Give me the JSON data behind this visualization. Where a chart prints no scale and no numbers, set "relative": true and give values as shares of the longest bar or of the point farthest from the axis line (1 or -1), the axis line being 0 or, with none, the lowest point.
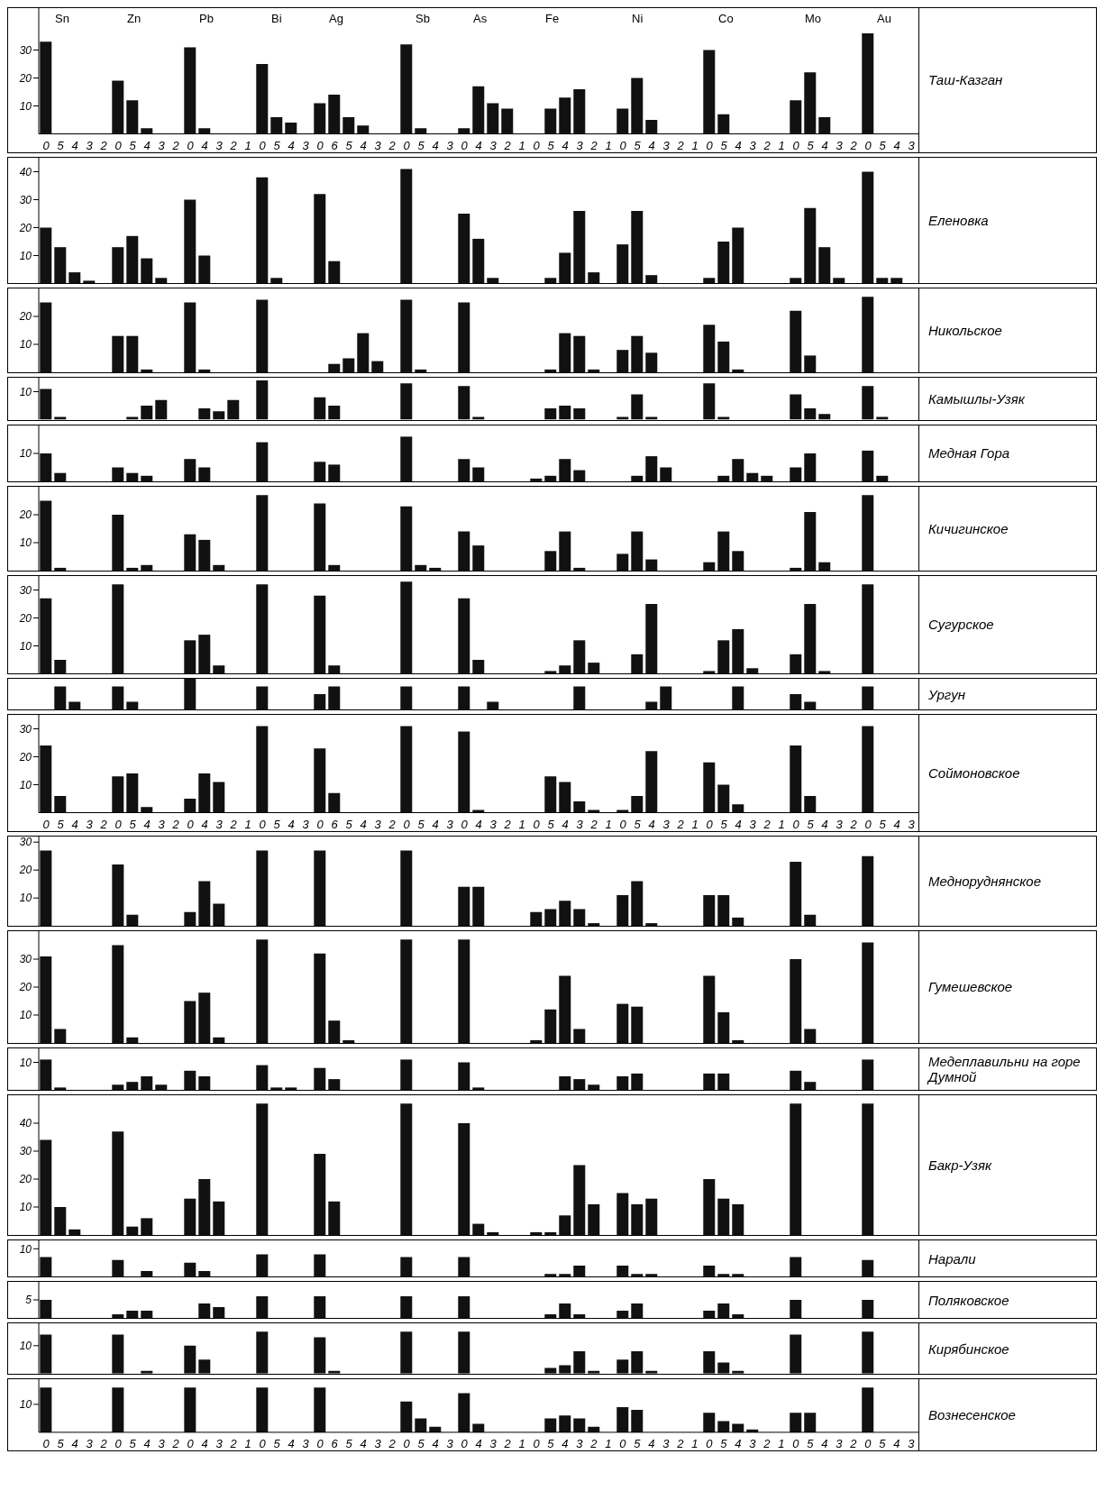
{
  "chart_data": [
    {
      "type": "bar",
      "y2label": "Таш-Казган",
      "color": "#111111",
      "ylim": [
        0,
        45
      ],
      "yticks": [
        10,
        20,
        30
      ],
      "annotations": [
        "Sn",
        "Zn",
        "Pb",
        "Bi",
        "Ag",
        "Sb",
        "As",
        "Fe",
        "Ni",
        "Co",
        "Mo",
        "Au"
      ],
      "categories": [
        "0",
        "5",
        "4",
        "3",
        "2",
        "0",
        "5",
        "4",
        "3",
        "2",
        "0",
        "4",
        "3",
        "2",
        "1",
        "0",
        "5",
        "4",
        "3",
        "0",
        "6",
        "5",
        "4",
        "3",
        "2",
        "0",
        "5",
        "4",
        "3",
        "0",
        "4",
        "3",
        "2",
        "1",
        "0",
        "5",
        "4",
        "3",
        "2",
        "1",
        "0",
        "5",
        "4",
        "3",
        "2",
        "1",
        "0",
        "5",
        "4",
        "3",
        "2",
        "1",
        "0",
        "5",
        "4",
        "3",
        "2",
        "0",
        "5",
        "4",
        "3"
      ],
      "values": [
        33,
        0,
        0,
        0,
        0,
        19,
        12,
        2,
        0,
        0,
        31,
        2,
        0,
        0,
        0,
        25,
        6,
        4,
        0,
        11,
        14,
        6,
        3,
        0,
        0,
        32,
        2,
        0,
        0,
        2,
        17,
        11,
        9,
        0,
        0,
        9,
        13,
        16,
        0,
        0,
        9,
        20,
        5,
        0,
        0,
        0,
        30,
        7,
        0,
        0,
        0,
        0,
        12,
        22,
        6,
        0,
        0,
        36,
        0,
        0,
        0
      ]
    },
    {
      "type": "bar",
      "y2label": "Еленовка",
      "color": "#111111",
      "ylim": [
        0,
        45
      ],
      "yticks": [
        10,
        20,
        30,
        40
      ],
      "categories": [
        null,
        null,
        null,
        null,
        null,
        null,
        null,
        null,
        null,
        null,
        null,
        null,
        null,
        null,
        null,
        null,
        null,
        null,
        null,
        null,
        null,
        null,
        null,
        null,
        null,
        null,
        null,
        null,
        null,
        null,
        null,
        null,
        null,
        null,
        null,
        null,
        null,
        null,
        null,
        null,
        null,
        null,
        null,
        null,
        null,
        null,
        null,
        null,
        null,
        null,
        null,
        null,
        null,
        null,
        null,
        null,
        null,
        null,
        null,
        null,
        null
      ],
      "values": [
        20,
        13,
        4,
        1,
        0,
        13,
        17,
        9,
        2,
        0,
        30,
        10,
        0,
        0,
        0,
        38,
        2,
        0,
        0,
        32,
        8,
        0,
        0,
        0,
        0,
        41,
        0,
        0,
        0,
        25,
        16,
        2,
        0,
        0,
        0,
        2,
        11,
        26,
        4,
        0,
        14,
        26,
        3,
        0,
        0,
        0,
        2,
        15,
        20,
        0,
        0,
        0,
        2,
        27,
        13,
        2,
        0,
        40,
        2,
        2,
        0
      ]
    },
    {
      "type": "bar",
      "y2label": "Никольское",
      "color": "#111111",
      "ylim": [
        0,
        30
      ],
      "yticks": [
        10,
        20
      ],
      "categories": [
        null,
        null,
        null,
        null,
        null,
        null,
        null,
        null,
        null,
        null,
        null,
        null,
        null,
        null,
        null,
        null,
        null,
        null,
        null,
        null,
        null,
        null,
        null,
        null,
        null,
        null,
        null,
        null,
        null,
        null,
        null,
        null,
        null,
        null,
        null,
        null,
        null,
        null,
        null,
        null,
        null,
        null,
        null,
        null,
        null,
        null,
        null,
        null,
        null,
        null,
        null,
        null,
        null,
        null,
        null,
        null,
        null,
        null,
        null,
        null,
        null
      ],
      "values": [
        25,
        0,
        0,
        0,
        0,
        13,
        13,
        1,
        0,
        0,
        25,
        1,
        0,
        0,
        0,
        26,
        0,
        0,
        0,
        0,
        3,
        5,
        14,
        4,
        0,
        26,
        1,
        0,
        0,
        25,
        0,
        0,
        0,
        0,
        0,
        1,
        14,
        13,
        1,
        0,
        8,
        13,
        7,
        0,
        0,
        0,
        17,
        11,
        1,
        0,
        0,
        0,
        22,
        6,
        0,
        0,
        0,
        27,
        0,
        0,
        0
      ]
    },
    {
      "type": "bar",
      "y2label": "Камышлы-Узяк",
      "color": "#111111",
      "ylim": [
        0,
        15
      ],
      "yticks": [
        10
      ],
      "categories": [
        null,
        null,
        null,
        null,
        null,
        null,
        null,
        null,
        null,
        null,
        null,
        null,
        null,
        null,
        null,
        null,
        null,
        null,
        null,
        null,
        null,
        null,
        null,
        null,
        null,
        null,
        null,
        null,
        null,
        null,
        null,
        null,
        null,
        null,
        null,
        null,
        null,
        null,
        null,
        null,
        null,
        null,
        null,
        null,
        null,
        null,
        null,
        null,
        null,
        null,
        null,
        null,
        null,
        null,
        null,
        null,
        null,
        null,
        null,
        null,
        null
      ],
      "values": [
        11,
        1,
        0,
        0,
        0,
        0,
        1,
        5,
        7,
        0,
        0,
        4,
        3,
        7,
        0,
        14,
        0,
        0,
        0,
        8,
        5,
        0,
        0,
        0,
        0,
        13,
        0,
        0,
        0,
        12,
        1,
        0,
        0,
        0,
        0,
        4,
        5,
        4,
        0,
        0,
        1,
        9,
        1,
        0,
        0,
        0,
        13,
        1,
        0,
        0,
        0,
        0,
        9,
        4,
        2,
        0,
        0,
        12,
        1,
        0,
        0
      ]
    },
    {
      "type": "bar",
      "y2label": "Медная Гора",
      "color": "#111111",
      "ylim": [
        0,
        20
      ],
      "yticks": [
        10
      ],
      "categories": [
        null,
        null,
        null,
        null,
        null,
        null,
        null,
        null,
        null,
        null,
        null,
        null,
        null,
        null,
        null,
        null,
        null,
        null,
        null,
        null,
        null,
        null,
        null,
        null,
        null,
        null,
        null,
        null,
        null,
        null,
        null,
        null,
        null,
        null,
        null,
        null,
        null,
        null,
        null,
        null,
        null,
        null,
        null,
        null,
        null,
        null,
        null,
        null,
        null,
        null,
        null,
        null,
        null,
        null,
        null,
        null,
        null,
        null,
        null,
        null,
        null
      ],
      "values": [
        10,
        3,
        0,
        0,
        0,
        5,
        3,
        2,
        0,
        0,
        8,
        5,
        0,
        0,
        0,
        14,
        0,
        0,
        0,
        7,
        6,
        0,
        0,
        0,
        0,
        16,
        0,
        0,
        0,
        8,
        5,
        0,
        0,
        0,
        1,
        2,
        8,
        4,
        0,
        0,
        0,
        2,
        9,
        5,
        0,
        0,
        0,
        2,
        8,
        3,
        2,
        0,
        5,
        10,
        0,
        0,
        0,
        11,
        2,
        0,
        0
      ]
    },
    {
      "type": "bar",
      "y2label": "Кичигинское",
      "color": "#111111",
      "ylim": [
        0,
        30
      ],
      "yticks": [
        10,
        20
      ],
      "categories": [
        null,
        null,
        null,
        null,
        null,
        null,
        null,
        null,
        null,
        null,
        null,
        null,
        null,
        null,
        null,
        null,
        null,
        null,
        null,
        null,
        null,
        null,
        null,
        null,
        null,
        null,
        null,
        null,
        null,
        null,
        null,
        null,
        null,
        null,
        null,
        null,
        null,
        null,
        null,
        null,
        null,
        null,
        null,
        null,
        null,
        null,
        null,
        null,
        null,
        null,
        null,
        null,
        null,
        null,
        null,
        null,
        null,
        null,
        null,
        null,
        null
      ],
      "values": [
        25,
        1,
        0,
        0,
        0,
        20,
        1,
        2,
        0,
        0,
        13,
        11,
        2,
        0,
        0,
        27,
        0,
        0,
        0,
        24,
        2,
        0,
        0,
        0,
        0,
        23,
        2,
        1,
        0,
        14,
        9,
        0,
        0,
        0,
        0,
        7,
        14,
        1,
        0,
        0,
        6,
        14,
        4,
        0,
        0,
        0,
        3,
        14,
        7,
        0,
        0,
        0,
        1,
        21,
        3,
        0,
        0,
        27,
        0,
        0,
        0
      ]
    },
    {
      "type": "bar",
      "y2label": "Сугурское",
      "color": "#111111",
      "ylim": [
        0,
        35
      ],
      "yticks": [
        10,
        20,
        30
      ],
      "categories": [
        null,
        null,
        null,
        null,
        null,
        null,
        null,
        null,
        null,
        null,
        null,
        null,
        null,
        null,
        null,
        null,
        null,
        null,
        null,
        null,
        null,
        null,
        null,
        null,
        null,
        null,
        null,
        null,
        null,
        null,
        null,
        null,
        null,
        null,
        null,
        null,
        null,
        null,
        null,
        null,
        null,
        null,
        null,
        null,
        null,
        null,
        null,
        null,
        null,
        null,
        null,
        null,
        null,
        null,
        null,
        null,
        null,
        null,
        null,
        null,
        null
      ],
      "values": [
        27,
        5,
        0,
        0,
        0,
        32,
        0,
        0,
        0,
        0,
        12,
        14,
        3,
        0,
        0,
        32,
        0,
        0,
        0,
        28,
        3,
        0,
        0,
        0,
        0,
        33,
        0,
        0,
        0,
        27,
        5,
        0,
        0,
        0,
        0,
        1,
        3,
        12,
        4,
        0,
        0,
        7,
        25,
        0,
        0,
        0,
        1,
        12,
        16,
        2,
        0,
        0,
        7,
        25,
        1,
        0,
        0,
        32,
        0,
        0,
        0
      ]
    },
    {
      "type": "bar",
      "y2label": "Ургун",
      "color": "#111111",
      "relative": true,
      "categories": [
        null,
        null,
        null,
        null,
        null,
        null,
        null,
        null,
        null,
        null,
        null,
        null,
        null,
        null,
        null,
        null,
        null,
        null,
        null,
        null,
        null,
        null,
        null,
        null,
        null,
        null,
        null,
        null,
        null,
        null,
        null,
        null,
        null,
        null,
        null,
        null,
        null,
        null,
        null,
        null,
        null,
        null,
        null,
        null,
        null,
        null,
        null,
        null,
        null,
        null,
        null,
        null,
        null,
        null,
        null,
        null,
        null,
        null,
        null,
        null,
        null
      ],
      "values": [
        0,
        0.75,
        0.25,
        0,
        0,
        0.75,
        0.25,
        0,
        0,
        0,
        1,
        0,
        0,
        0,
        0,
        0.75,
        0,
        0,
        0,
        0.5,
        0.75,
        0,
        0,
        0,
        0,
        0.75,
        0,
        0,
        0,
        0.75,
        0,
        0.25,
        0,
        0,
        0,
        0,
        0,
        0.75,
        0,
        0,
        0,
        0,
        0.25,
        0.75,
        0,
        0,
        0,
        0,
        0.75,
        0,
        0,
        0,
        0.5,
        0.25,
        0,
        0,
        0,
        0.75,
        0,
        0,
        0
      ]
    },
    {
      "type": "bar",
      "y2label": "Соймоновское",
      "color": "#111111",
      "ylim": [
        0,
        35
      ],
      "yticks": [
        10,
        20,
        30
      ],
      "categories": [
        "0",
        "5",
        "4",
        "3",
        "2",
        "0",
        "5",
        "4",
        "3",
        "2",
        "0",
        "4",
        "3",
        "2",
        "1",
        "0",
        "5",
        "4",
        "3",
        "0",
        "6",
        "5",
        "4",
        "3",
        "2",
        "0",
        "5",
        "4",
        "3",
        "0",
        "4",
        "3",
        "2",
        "1",
        "0",
        "5",
        "4",
        "3",
        "2",
        "1",
        "0",
        "5",
        "4",
        "3",
        "2",
        "1",
        "0",
        "5",
        "4",
        "3",
        "2",
        "1",
        "0",
        "5",
        "4",
        "3",
        "2",
        "0",
        "5",
        "4",
        "3"
      ],
      "values": [
        24,
        6,
        0,
        0,
        0,
        13,
        14,
        2,
        0,
        0,
        5,
        14,
        11,
        0,
        0,
        31,
        0,
        0,
        0,
        23,
        7,
        0,
        0,
        0,
        0,
        31,
        0,
        0,
        0,
        29,
        1,
        0,
        0,
        0,
        0,
        13,
        11,
        4,
        1,
        0,
        1,
        6,
        22,
        0,
        0,
        0,
        18,
        10,
        3,
        0,
        0,
        0,
        24,
        6,
        0,
        0,
        0,
        31,
        0,
        0,
        0
      ]
    },
    {
      "type": "bar",
      "y2label": "Медноруднянское",
      "color": "#111111",
      "ylim": [
        0,
        32
      ],
      "yticks": [
        10,
        20,
        30
      ],
      "categories": [
        null,
        null,
        null,
        null,
        null,
        null,
        null,
        null,
        null,
        null,
        null,
        null,
        null,
        null,
        null,
        null,
        null,
        null,
        null,
        null,
        null,
        null,
        null,
        null,
        null,
        null,
        null,
        null,
        null,
        null,
        null,
        null,
        null,
        null,
        null,
        null,
        null,
        null,
        null,
        null,
        null,
        null,
        null,
        null,
        null,
        null,
        null,
        null,
        null,
        null,
        null,
        null,
        null,
        null,
        null,
        null,
        null,
        null,
        null,
        null,
        null
      ],
      "values": [
        27,
        0,
        0,
        0,
        0,
        22,
        4,
        0,
        0,
        0,
        5,
        16,
        8,
        0,
        0,
        27,
        0,
        0,
        0,
        27,
        0,
        0,
        0,
        0,
        0,
        27,
        0,
        0,
        0,
        14,
        14,
        0,
        0,
        0,
        5,
        6,
        9,
        6,
        1,
        0,
        11,
        16,
        1,
        0,
        0,
        0,
        11,
        11,
        3,
        0,
        0,
        0,
        23,
        4,
        0,
        0,
        0,
        25,
        0,
        0,
        0
      ]
    },
    {
      "type": "bar",
      "y2label": "Гумешевское",
      "color": "#111111",
      "ylim": [
        0,
        40
      ],
      "yticks": [
        10,
        20,
        30
      ],
      "categories": [
        null,
        null,
        null,
        null,
        null,
        null,
        null,
        null,
        null,
        null,
        null,
        null,
        null,
        null,
        null,
        null,
        null,
        null,
        null,
        null,
        null,
        null,
        null,
        null,
        null,
        null,
        null,
        null,
        null,
        null,
        null,
        null,
        null,
        null,
        null,
        null,
        null,
        null,
        null,
        null,
        null,
        null,
        null,
        null,
        null,
        null,
        null,
        null,
        null,
        null,
        null,
        null,
        null,
        null,
        null,
        null,
        null,
        null,
        null,
        null,
        null
      ],
      "values": [
        31,
        5,
        0,
        0,
        0,
        35,
        2,
        0,
        0,
        0,
        15,
        18,
        2,
        0,
        0,
        37,
        0,
        0,
        0,
        32,
        8,
        1,
        0,
        0,
        0,
        37,
        0,
        0,
        0,
        37,
        0,
        0,
        0,
        0,
        1,
        12,
        24,
        5,
        0,
        0,
        14,
        13,
        0,
        0,
        0,
        0,
        24,
        11,
        1,
        0,
        0,
        0,
        30,
        5,
        0,
        0,
        0,
        36,
        0,
        0,
        0
      ]
    },
    {
      "type": "bar",
      "y2label": "Медеплавильни на горе Думной",
      "color": "#111111",
      "ylim": [
        0,
        15
      ],
      "yticks": [
        10
      ],
      "categories": [
        null,
        null,
        null,
        null,
        null,
        null,
        null,
        null,
        null,
        null,
        null,
        null,
        null,
        null,
        null,
        null,
        null,
        null,
        null,
        null,
        null,
        null,
        null,
        null,
        null,
        null,
        null,
        null,
        null,
        null,
        null,
        null,
        null,
        null,
        null,
        null,
        null,
        null,
        null,
        null,
        null,
        null,
        null,
        null,
        null,
        null,
        null,
        null,
        null,
        null,
        null,
        null,
        null,
        null,
        null,
        null,
        null,
        null,
        null,
        null,
        null
      ],
      "values": [
        11,
        1,
        0,
        0,
        0,
        2,
        3,
        5,
        2,
        0,
        7,
        5,
        0,
        0,
        0,
        9,
        1,
        1,
        0,
        8,
        4,
        0,
        0,
        0,
        0,
        11,
        0,
        0,
        0,
        10,
        1,
        0,
        0,
        0,
        0,
        0,
        5,
        4,
        2,
        0,
        5,
        6,
        0,
        0,
        0,
        0,
        6,
        6,
        0,
        0,
        0,
        0,
        7,
        3,
        0,
        0,
        0,
        11,
        0,
        0,
        0
      ]
    },
    {
      "type": "bar",
      "y2label": "Бакр-Узяк",
      "color": "#111111",
      "ylim": [
        0,
        50
      ],
      "yticks": [
        10,
        20,
        30,
        40
      ],
      "categories": [
        null,
        null,
        null,
        null,
        null,
        null,
        null,
        null,
        null,
        null,
        null,
        null,
        null,
        null,
        null,
        null,
        null,
        null,
        null,
        null,
        null,
        null,
        null,
        null,
        null,
        null,
        null,
        null,
        null,
        null,
        null,
        null,
        null,
        null,
        null,
        null,
        null,
        null,
        null,
        null,
        null,
        null,
        null,
        null,
        null,
        null,
        null,
        null,
        null,
        null,
        null,
        null,
        null,
        null,
        null,
        null,
        null,
        null,
        null,
        null,
        null
      ],
      "values": [
        34,
        10,
        2,
        0,
        0,
        37,
        3,
        6,
        0,
        0,
        13,
        20,
        12,
        0,
        0,
        47,
        0,
        0,
        0,
        29,
        12,
        0,
        0,
        0,
        0,
        47,
        0,
        0,
        0,
        40,
        4,
        1,
        0,
        0,
        1,
        1,
        7,
        25,
        11,
        0,
        15,
        11,
        13,
        0,
        0,
        0,
        20,
        13,
        11,
        0,
        0,
        0,
        47,
        0,
        0,
        0,
        0,
        47,
        0,
        0,
        0
      ]
    },
    {
      "type": "bar",
      "y2label": "Нарали",
      "color": "#111111",
      "ylim": [
        0,
        13
      ],
      "yticks": [
        10
      ],
      "categories": [
        null,
        null,
        null,
        null,
        null,
        null,
        null,
        null,
        null,
        null,
        null,
        null,
        null,
        null,
        null,
        null,
        null,
        null,
        null,
        null,
        null,
        null,
        null,
        null,
        null,
        null,
        null,
        null,
        null,
        null,
        null,
        null,
        null,
        null,
        null,
        null,
        null,
        null,
        null,
        null,
        null,
        null,
        null,
        null,
        null,
        null,
        null,
        null,
        null,
        null,
        null,
        null,
        null,
        null,
        null,
        null,
        null,
        null,
        null,
        null,
        null
      ],
      "values": [
        7,
        0,
        0,
        0,
        0,
        6,
        0,
        2,
        0,
        0,
        5,
        2,
        0,
        0,
        0,
        8,
        0,
        0,
        0,
        8,
        0,
        0,
        0,
        0,
        0,
        7,
        0,
        0,
        0,
        7,
        0,
        0,
        0,
        0,
        0,
        1,
        1,
        4,
        0,
        0,
        4,
        1,
        1,
        0,
        0,
        0,
        4,
        1,
        1,
        0,
        0,
        0,
        7,
        0,
        0,
        0,
        0,
        6,
        0,
        0,
        0
      ]
    },
    {
      "type": "bar",
      "y2label": "Поляковское",
      "color": "#111111",
      "ylim": [
        0,
        10
      ],
      "yticks": [
        5
      ],
      "categories": [
        null,
        null,
        null,
        null,
        null,
        null,
        null,
        null,
        null,
        null,
        null,
        null,
        null,
        null,
        null,
        null,
        null,
        null,
        null,
        null,
        null,
        null,
        null,
        null,
        null,
        null,
        null,
        null,
        null,
        null,
        null,
        null,
        null,
        null,
        null,
        null,
        null,
        null,
        null,
        null,
        null,
        null,
        null,
        null,
        null,
        null,
        null,
        null,
        null,
        null,
        null,
        null,
        null,
        null,
        null,
        null,
        null,
        null,
        null,
        null,
        null
      ],
      "values": [
        5,
        0,
        0,
        0,
        0,
        1,
        2,
        2,
        0,
        0,
        0,
        4,
        3,
        0,
        0,
        6,
        0,
        0,
        0,
        6,
        0,
        0,
        0,
        0,
        0,
        6,
        0,
        0,
        0,
        6,
        0,
        0,
        0,
        0,
        0,
        1,
        4,
        1,
        0,
        0,
        2,
        4,
        0,
        0,
        0,
        0,
        2,
        4,
        1,
        0,
        0,
        0,
        5,
        0,
        0,
        0,
        0,
        5,
        0,
        0,
        0
      ]
    },
    {
      "type": "bar",
      "y2label": "Кирябинское",
      "color": "#111111",
      "ylim": [
        0,
        18
      ],
      "yticks": [
        10
      ],
      "categories": [
        null,
        null,
        null,
        null,
        null,
        null,
        null,
        null,
        null,
        null,
        null,
        null,
        null,
        null,
        null,
        null,
        null,
        null,
        null,
        null,
        null,
        null,
        null,
        null,
        null,
        null,
        null,
        null,
        null,
        null,
        null,
        null,
        null,
        null,
        null,
        null,
        null,
        null,
        null,
        null,
        null,
        null,
        null,
        null,
        null,
        null,
        null,
        null,
        null,
        null,
        null,
        null,
        null,
        null,
        null,
        null,
        null,
        null,
        null,
        null,
        null
      ],
      "values": [
        14,
        0,
        0,
        0,
        0,
        14,
        0,
        1,
        0,
        0,
        10,
        5,
        0,
        0,
        0,
        15,
        0,
        0,
        0,
        13,
        1,
        0,
        0,
        0,
        0,
        15,
        0,
        0,
        0,
        15,
        0,
        0,
        0,
        0,
        0,
        2,
        3,
        8,
        1,
        0,
        5,
        8,
        1,
        0,
        0,
        0,
        8,
        4,
        1,
        0,
        0,
        0,
        14,
        0,
        0,
        0,
        0,
        15,
        0,
        0,
        0
      ]
    },
    {
      "type": "bar",
      "y2label": "Вознесенское",
      "color": "#111111",
      "ylim": [
        0,
        19
      ],
      "yticks": [
        10
      ],
      "categories": [
        "0",
        "5",
        "4",
        "3",
        "2",
        "0",
        "5",
        "4",
        "3",
        "2",
        "0",
        "4",
        "3",
        "2",
        "1",
        "0",
        "5",
        "4",
        "3",
        "0",
        "6",
        "5",
        "4",
        "3",
        "2",
        "0",
        "5",
        "4",
        "3",
        "0",
        "4",
        "3",
        "2",
        "1",
        "0",
        "5",
        "4",
        "3",
        "2",
        "1",
        "0",
        "5",
        "4",
        "3",
        "2",
        "1",
        "0",
        "5",
        "4",
        "3",
        "2",
        "1",
        "0",
        "5",
        "4",
        "3",
        "2",
        "0",
        "5",
        "4",
        "3"
      ],
      "values": [
        16,
        0,
        0,
        0,
        0,
        16,
        0,
        0,
        0,
        0,
        16,
        0,
        0,
        0,
        0,
        16,
        0,
        0,
        0,
        16,
        0,
        0,
        0,
        0,
        0,
        11,
        5,
        2,
        0,
        14,
        3,
        0,
        0,
        0,
        0,
        5,
        6,
        5,
        2,
        0,
        9,
        8,
        0,
        0,
        0,
        0,
        7,
        4,
        3,
        1,
        0,
        0,
        7,
        7,
        0,
        0,
        0,
        16,
        0,
        0,
        0
      ]
    }
  ]
}
